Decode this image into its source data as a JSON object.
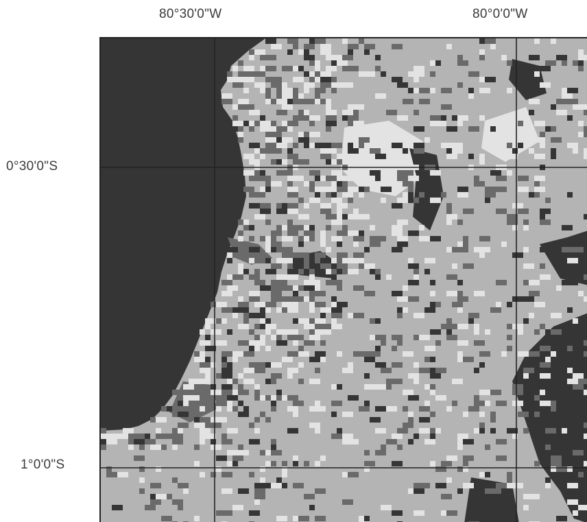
{
  "labels": {
    "lon_left": "80°30'0\"W",
    "lon_right": "80°0'0\"W",
    "lat_top": "0°30'0\"S",
    "lat_bottom": "1°0'0\"S"
  },
  "map": {
    "palette": {
      "dark": "#353535",
      "medium_dark": "#6a6a6a",
      "light": "#b4b4b4",
      "very_light": "#e3e3e3",
      "grid_line": "#222222"
    }
  }
}
